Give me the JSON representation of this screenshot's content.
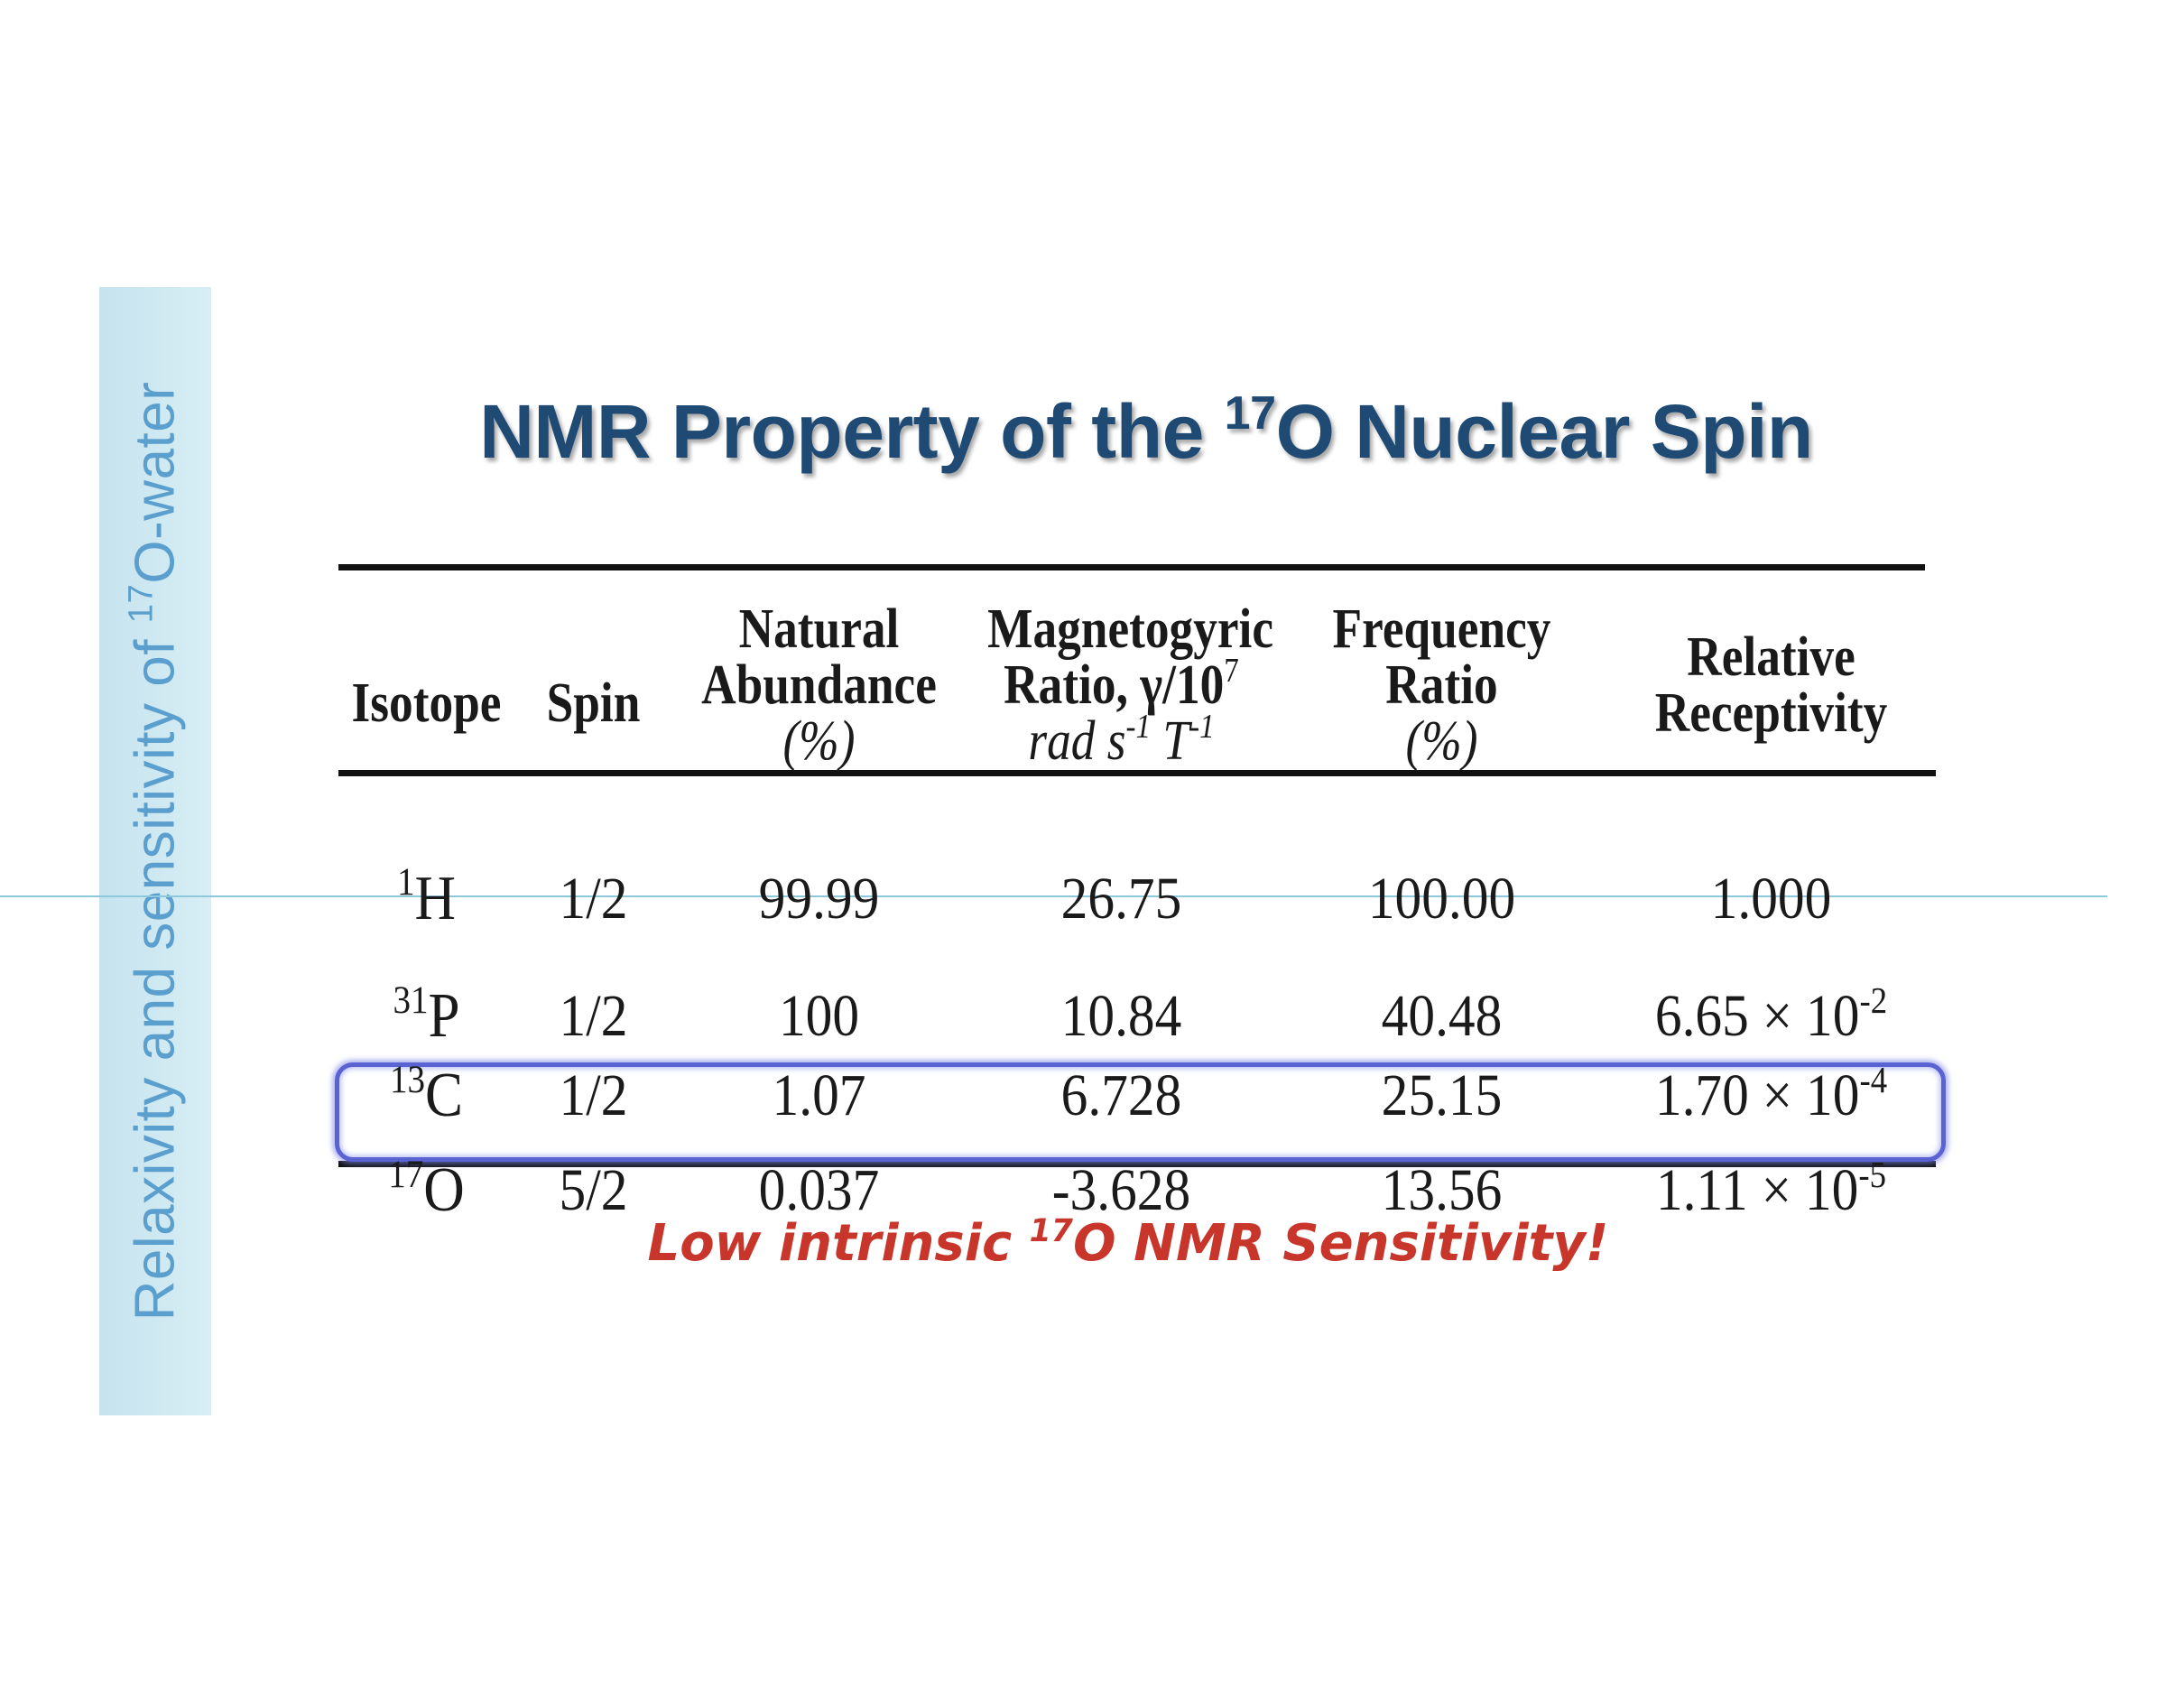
{
  "sidebar": {
    "text_before": "Relaxivity and sensitivity of ",
    "text_sup": "17",
    "text_after": "O-water"
  },
  "title": {
    "before": "NMR Property of the ",
    "sup": "17",
    "after": "O Nuclear Spin"
  },
  "table": {
    "headers": {
      "isotope": "Isotope",
      "spin": "Spin",
      "abundance_l1": "Natural",
      "abundance_l2": "Abundance",
      "abundance_l3": "(%)",
      "gyro_l1": "Magnetogyric",
      "gyro_l2": "Ratio, γ/10",
      "gyro_l2_sup": "7",
      "gyro_l3_a": "rad s",
      "gyro_l3_sup1": "-1",
      "gyro_l3_b": " T",
      "gyro_l3_sup2": "-1",
      "freq_l1": "Frequency",
      "freq_l2": "Ratio",
      "freq_l3": "(%)",
      "recep_l1": "Relative",
      "recep_l2": "Receptivity"
    },
    "rows": [
      {
        "mass": "1",
        "element": "H",
        "spin": "1/2",
        "abundance": "99.99",
        "gyro": "26.75",
        "freq": "100.00",
        "recep": "1.000",
        "recep_exp": ""
      },
      {
        "mass": "31",
        "element": "P",
        "spin": "1/2",
        "abundance": "100",
        "gyro": "10.84",
        "freq": "40.48",
        "recep": "6.65 × 10",
        "recep_exp": "-2"
      },
      {
        "mass": "13",
        "element": "C",
        "spin": "1/2",
        "abundance": "1.07",
        "gyro": "6.728",
        "freq": "25.15",
        "recep": "1.70 × 10",
        "recep_exp": "-4"
      },
      {
        "mass": "17",
        "element": "O",
        "spin": "5/2",
        "abundance": "0.037",
        "gyro": "-3.628",
        "freq": "13.56",
        "recep": "1.11 × 10",
        "recep_exp": "-5"
      }
    ]
  },
  "note": {
    "before": "Low intrinsic ",
    "sup": "17",
    "after": "O NMR Sensitivity!"
  },
  "colors": {
    "title": "#1f4a73",
    "sidebar_text": "#5b9fce",
    "sidebar_bg": "#c6e3ee",
    "highlight_border": "#5a63d2",
    "note": "#c8352a"
  }
}
